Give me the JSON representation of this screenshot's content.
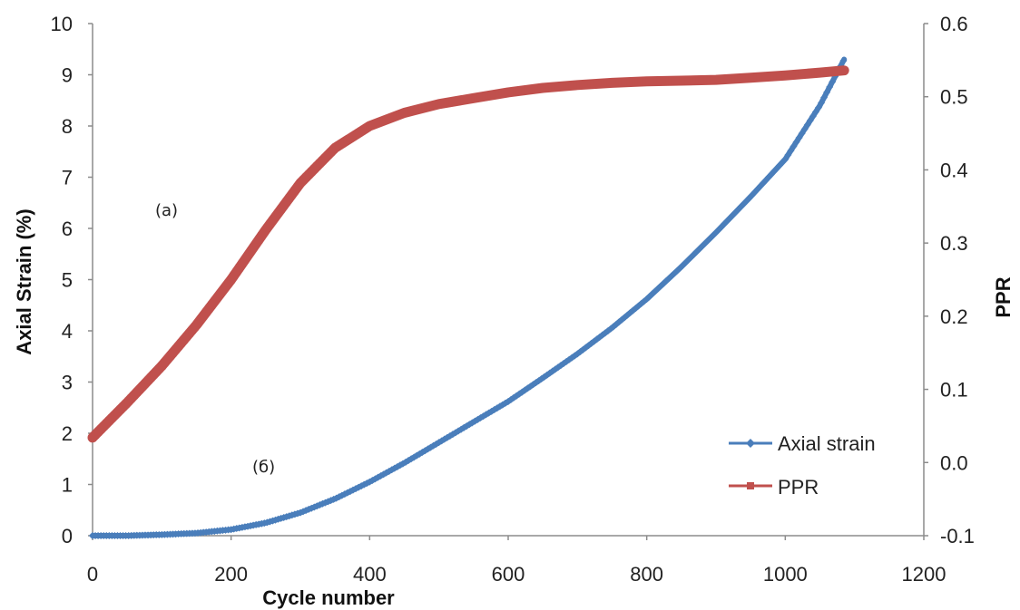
{
  "chart_data": {
    "type": "line",
    "xlabel": "Cycle number",
    "ylabel": "Axial Strain (%)",
    "y2label": "PPR",
    "xlim": [
      0,
      1200
    ],
    "ylim": [
      0,
      10
    ],
    "y2lim": [
      -0.1,
      0.6
    ],
    "xticks": [
      "0",
      "200",
      "400",
      "600",
      "800",
      "1000",
      "1200"
    ],
    "yticks": [
      "0",
      "1",
      "2",
      "3",
      "4",
      "5",
      "6",
      "7",
      "8",
      "9",
      "10"
    ],
    "y2ticks": [
      "-0.1",
      "0.0",
      "0.1",
      "0.2",
      "0.3",
      "0.4",
      "0.5",
      "0.6"
    ],
    "grid": false,
    "legend_position": "bottom-right",
    "annotations": [
      {
        "text": "(a)",
        "x": 100,
        "y": 6.45
      },
      {
        "text": "(б)",
        "x": 245,
        "y": 1.35
      }
    ],
    "series": [
      {
        "name": "Axial strain",
        "axis": "left",
        "color": "#4a7ebb",
        "x": [
          0,
          50,
          100,
          150,
          200,
          250,
          300,
          350,
          400,
          450,
          500,
          550,
          600,
          650,
          700,
          750,
          800,
          850,
          900,
          950,
          1000,
          1050,
          1085
        ],
        "y": [
          0,
          0.0,
          0.02,
          0.05,
          0.12,
          0.25,
          0.45,
          0.72,
          1.05,
          1.42,
          1.82,
          2.22,
          2.62,
          3.08,
          3.55,
          4.06,
          4.62,
          5.25,
          5.92,
          6.62,
          7.35,
          8.4,
          9.3
        ]
      },
      {
        "name": "PPR",
        "axis": "right",
        "color": "#c0504d",
        "x": [
          0,
          50,
          100,
          150,
          200,
          250,
          300,
          350,
          400,
          450,
          500,
          550,
          600,
          650,
          700,
          750,
          800,
          850,
          900,
          950,
          1000,
          1050,
          1085
        ],
        "y": [
          0.034,
          0.082,
          0.132,
          0.188,
          0.25,
          0.318,
          0.382,
          0.43,
          0.46,
          0.478,
          0.49,
          0.498,
          0.506,
          0.512,
          0.516,
          0.519,
          0.521,
          0.522,
          0.523,
          0.526,
          0.529,
          0.533,
          0.536
        ]
      }
    ]
  }
}
